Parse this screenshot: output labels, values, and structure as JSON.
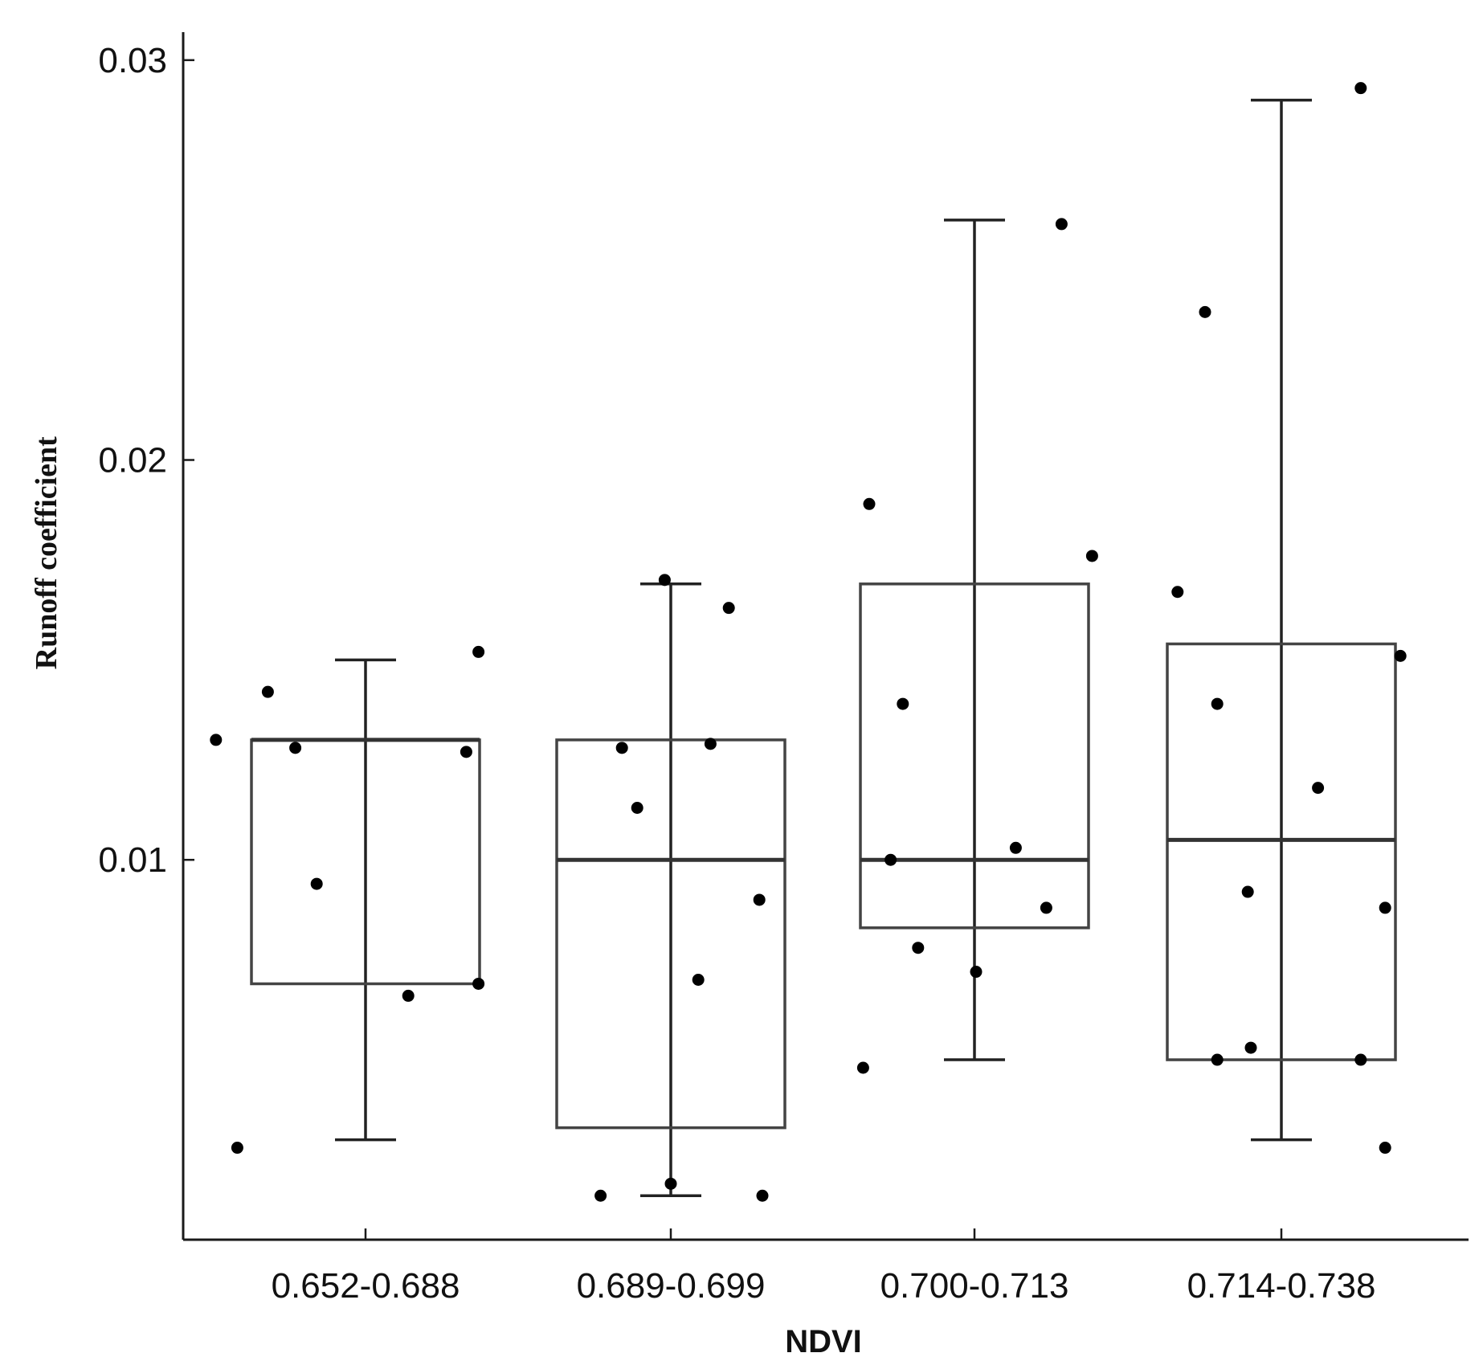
{
  "chart_data": {
    "type": "box",
    "xlabel": "NDVI",
    "ylabel": "Runoff coefficient",
    "yticks": [
      0.01,
      0.02,
      0.03
    ],
    "ytick_labels": [
      "0.01",
      "0.02",
      "0.03"
    ],
    "ylim": [
      0.0005,
      0.0307
    ],
    "categories": [
      "0.652-0.688",
      "0.689-0.699",
      "0.700-0.713",
      "0.714-0.738"
    ],
    "boxes": [
      {
        "category": "0.652-0.688",
        "whisker_low": 0.003,
        "q1": 0.0069,
        "median": 0.013,
        "q3": 0.013,
        "whisker_high": 0.015
      },
      {
        "category": "0.689-0.699",
        "whisker_low": 0.0016,
        "q1": 0.0033,
        "median": 0.01,
        "q3": 0.013,
        "whisker_high": 0.0169
      },
      {
        "category": "0.700-0.713",
        "whisker_low": 0.005,
        "q1": 0.0083,
        "median": 0.01,
        "q3": 0.0169,
        "whisker_high": 0.026
      },
      {
        "category": "0.714-0.738",
        "whisker_low": 0.003,
        "q1": 0.005,
        "median": 0.0105,
        "q3": 0.0154,
        "whisker_high": 0.029
      }
    ],
    "points": [
      {
        "x": 0.51,
        "y": 0.013
      },
      {
        "x": 0.58,
        "y": 0.0028
      },
      {
        "x": 0.68,
        "y": 0.0142
      },
      {
        "x": 0.77,
        "y": 0.0128
      },
      {
        "x": 0.84,
        "y": 0.0094
      },
      {
        "x": 1.14,
        "y": 0.0066
      },
      {
        "x": 1.33,
        "y": 0.0127
      },
      {
        "x": 1.37,
        "y": 0.0069
      },
      {
        "x": 1.37,
        "y": 0.0152
      },
      {
        "x": 1.77,
        "y": 0.0016
      },
      {
        "x": 1.84,
        "y": 0.0128
      },
      {
        "x": 1.89,
        "y": 0.0113
      },
      {
        "x": 1.98,
        "y": 0.017
      },
      {
        "x": 2.0,
        "y": 0.0019
      },
      {
        "x": 2.09,
        "y": 0.007
      },
      {
        "x": 2.13,
        "y": 0.0129
      },
      {
        "x": 2.19,
        "y": 0.0163
      },
      {
        "x": 2.29,
        "y": 0.009
      },
      {
        "x": 2.3,
        "y": 0.0016
      },
      {
        "x": 2.63,
        "y": 0.0048
      },
      {
        "x": 2.65,
        "y": 0.0189
      },
      {
        "x": 2.72,
        "y": 0.01
      },
      {
        "x": 2.76,
        "y": 0.0139
      },
      {
        "x": 2.81,
        "y": 0.0078
      },
      {
        "x": 3.0,
        "y": 0.0072
      },
      {
        "x": 3.13,
        "y": 0.0103
      },
      {
        "x": 3.23,
        "y": 0.0088
      },
      {
        "x": 3.28,
        "y": 0.0259
      },
      {
        "x": 3.38,
        "y": 0.0176
      },
      {
        "x": 3.66,
        "y": 0.0167
      },
      {
        "x": 3.75,
        "y": 0.0237
      },
      {
        "x": 3.79,
        "y": 0.0139
      },
      {
        "x": 3.79,
        "y": 0.005
      },
      {
        "x": 3.89,
        "y": 0.0092
      },
      {
        "x": 3.9,
        "y": 0.0053
      },
      {
        "x": 4.12,
        "y": 0.0118
      },
      {
        "x": 4.26,
        "y": 0.0293
      },
      {
        "x": 4.26,
        "y": 0.005
      },
      {
        "x": 4.34,
        "y": 0.0088
      },
      {
        "x": 4.34,
        "y": 0.0028
      },
      {
        "x": 4.39,
        "y": 0.0151
      }
    ]
  }
}
